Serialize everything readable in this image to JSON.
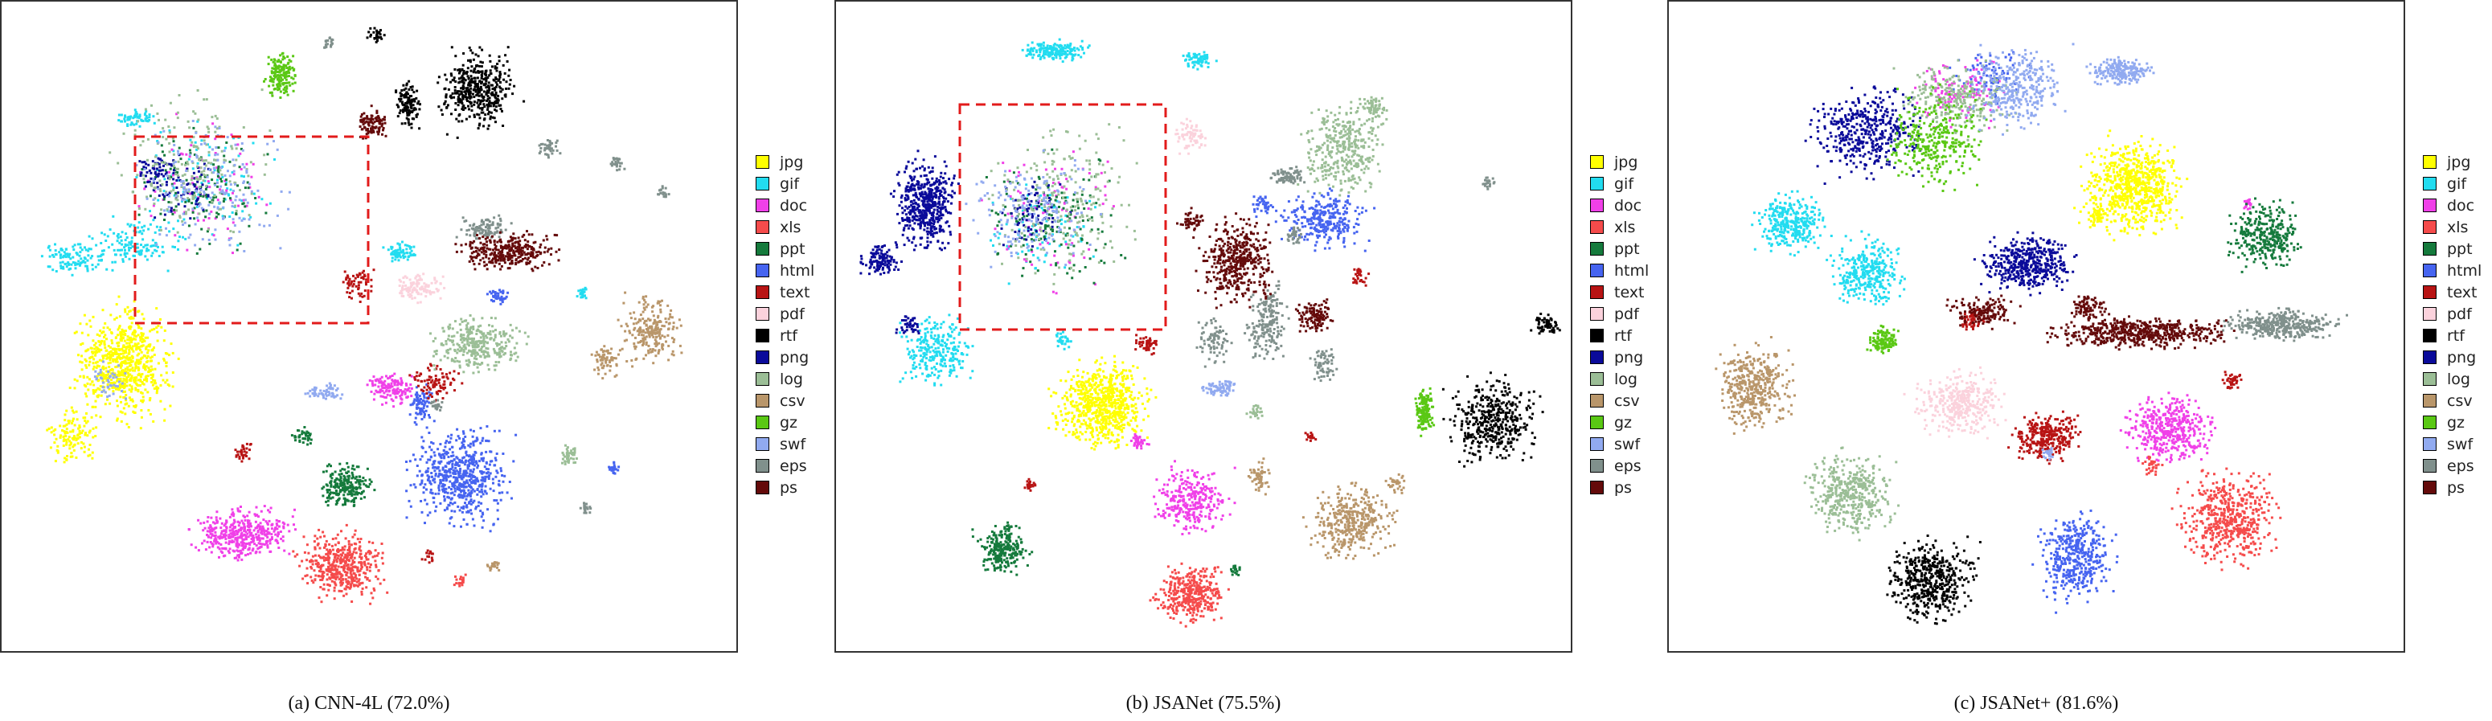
{
  "chart_data": [
    {
      "type": "scatter",
      "caption": "(a) CNN-4L (72.0%)",
      "legend_placement": "right",
      "axes_visible": false,
      "grid": false,
      "highlight_box": true,
      "series": [
        {
          "name": "jpg",
          "color": "#ffff00"
        },
        {
          "name": "gif",
          "color": "#22dcf0"
        },
        {
          "name": "doc",
          "color": "#f040e8"
        },
        {
          "name": "xls",
          "color": "#f54b4b"
        },
        {
          "name": "ppt",
          "color": "#157a3c"
        },
        {
          "name": "html",
          "color": "#4664f0"
        },
        {
          "name": "text",
          "color": "#b81414"
        },
        {
          "name": "pdf",
          "color": "#fbd2dc"
        },
        {
          "name": "rtf",
          "color": "#000000"
        },
        {
          "name": "png",
          "color": "#0a0a9a"
        },
        {
          "name": "log",
          "color": "#9bbe96"
        },
        {
          "name": "csv",
          "color": "#b9966a"
        },
        {
          "name": "gz",
          "color": "#5ac814"
        },
        {
          "name": "swf",
          "color": "#91aaf0"
        },
        {
          "name": "eps",
          "color": "#80908c"
        },
        {
          "name": "ps",
          "color": "#640a0a"
        }
      ]
    },
    {
      "type": "scatter",
      "caption": "(b) JSANet (75.5%)",
      "legend_placement": "right",
      "axes_visible": false,
      "grid": false,
      "highlight_box": true,
      "series": [
        {
          "name": "jpg",
          "color": "#ffff00"
        },
        {
          "name": "gif",
          "color": "#22dcf0"
        },
        {
          "name": "doc",
          "color": "#f040e8"
        },
        {
          "name": "xls",
          "color": "#f54b4b"
        },
        {
          "name": "ppt",
          "color": "#157a3c"
        },
        {
          "name": "html",
          "color": "#4664f0"
        },
        {
          "name": "text",
          "color": "#b81414"
        },
        {
          "name": "pdf",
          "color": "#fbd2dc"
        },
        {
          "name": "rtf",
          "color": "#000000"
        },
        {
          "name": "png",
          "color": "#0a0a9a"
        },
        {
          "name": "log",
          "color": "#9bbe96"
        },
        {
          "name": "csv",
          "color": "#b9966a"
        },
        {
          "name": "gz",
          "color": "#5ac814"
        },
        {
          "name": "swf",
          "color": "#91aaf0"
        },
        {
          "name": "eps",
          "color": "#80908c"
        },
        {
          "name": "ps",
          "color": "#640a0a"
        }
      ]
    },
    {
      "type": "scatter",
      "caption": "(c) JSANet+ (81.6%)",
      "legend_placement": "right",
      "axes_visible": false,
      "grid": false,
      "highlight_box": false,
      "series": [
        {
          "name": "jpg",
          "color": "#ffff00"
        },
        {
          "name": "gif",
          "color": "#22dcf0"
        },
        {
          "name": "doc",
          "color": "#f040e8"
        },
        {
          "name": "xls",
          "color": "#f54b4b"
        },
        {
          "name": "ppt",
          "color": "#157a3c"
        },
        {
          "name": "html",
          "color": "#4664f0"
        },
        {
          "name": "text",
          "color": "#b81414"
        },
        {
          "name": "pdf",
          "color": "#fbd2dc"
        },
        {
          "name": "rtf",
          "color": "#000000"
        },
        {
          "name": "png",
          "color": "#0a0a9a"
        },
        {
          "name": "log",
          "color": "#9bbe96"
        },
        {
          "name": "csv",
          "color": "#b9966a"
        },
        {
          "name": "gz",
          "color": "#5ac814"
        },
        {
          "name": "swf",
          "color": "#91aaf0"
        },
        {
          "name": "eps",
          "color": "#80908c"
        },
        {
          "name": "ps",
          "color": "#640a0a"
        }
      ]
    }
  ]
}
